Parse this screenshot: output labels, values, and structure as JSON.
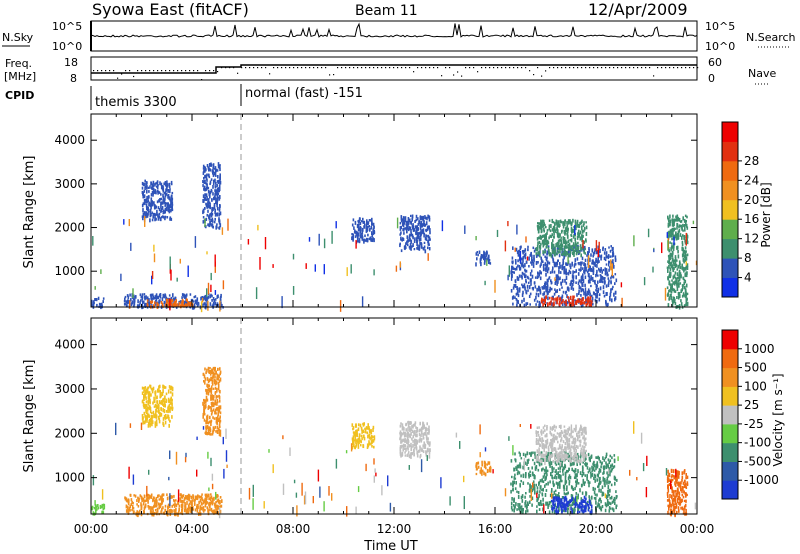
{
  "header": {
    "station": "Syowa East (fitACF)",
    "beam": "Beam 11",
    "date": "12/Apr/2009"
  },
  "noise_panel": {
    "left_label": "N.Sky",
    "left_ticks": [
      "10^5",
      "10^0"
    ],
    "right_ticks": [
      "10^5",
      "10^0"
    ],
    "right_label": "N.Search"
  },
  "freq_panel": {
    "left_label_line1": "Freq.",
    "left_label_line2": "[MHz]",
    "left_ticks": [
      "18",
      "8"
    ],
    "right_ticks": [
      "60",
      "0"
    ],
    "right_label": "Nave"
  },
  "cpid": {
    "label": "CPID",
    "segments": [
      {
        "name": "themis 3300",
        "start_hour": 0,
        "end_hour": 6
      },
      {
        "name": "normal (fast) -151",
        "start_hour": 6,
        "end_hour": 24
      }
    ]
  },
  "chart_data": [
    {
      "type": "heatmap",
      "parameter": "Power",
      "ylabel": "Slant Range [km]",
      "yticks": [
        1000,
        2000,
        3000,
        4000
      ],
      "ylim": [
        180,
        4600
      ],
      "xlim_hours": [
        0,
        24
      ],
      "colorbar": {
        "label": "Power [dB]",
        "tick_labels": [
          "4",
          "8",
          "12",
          "16",
          "20",
          "24",
          "28"
        ],
        "colors": [
          "#1030e6",
          "#2e53b8",
          "#3d8f6e",
          "#5fae4c",
          "#f0c020",
          "#f09020",
          "#ef6a10",
          "#e23010",
          "#ee0000"
        ]
      },
      "echo_regions": [
        {
          "t0": 0.0,
          "t1": 0.5,
          "r0": 200,
          "r1": 420,
          "color": "#2e53b8"
        },
        {
          "t0": 1.3,
          "t1": 5.2,
          "r0": 200,
          "r1": 500,
          "color": "#2e53b8"
        },
        {
          "t0": 2.2,
          "t1": 4.0,
          "r0": 220,
          "r1": 380,
          "color": "#ef6a10"
        },
        {
          "t0": 2.0,
          "t1": 3.2,
          "r0": 2200,
          "r1": 3100,
          "color": "#2e53b8"
        },
        {
          "t0": 4.4,
          "t1": 5.1,
          "r0": 2000,
          "r1": 3500,
          "color": "#2e53b8"
        },
        {
          "t0": 10.3,
          "t1": 11.2,
          "r0": 1700,
          "r1": 2250,
          "color": "#2e53b8"
        },
        {
          "t0": 12.2,
          "t1": 13.4,
          "r0": 1500,
          "r1": 2300,
          "color": "#2e53b8"
        },
        {
          "t0": 15.2,
          "t1": 15.8,
          "r0": 1200,
          "r1": 1500,
          "color": "#2e53b8"
        },
        {
          "t0": 16.6,
          "t1": 20.8,
          "r0": 250,
          "r1": 1600,
          "color": "#2e53b8"
        },
        {
          "t0": 17.6,
          "t1": 19.6,
          "r0": 1400,
          "r1": 2200,
          "color": "#3d8f6e"
        },
        {
          "t0": 17.8,
          "t1": 19.8,
          "r0": 250,
          "r1": 450,
          "color": "#e23010"
        },
        {
          "t0": 22.8,
          "t1": 23.6,
          "r0": 200,
          "r1": 2300,
          "color": "#3d8f6e"
        }
      ]
    },
    {
      "type": "heatmap",
      "parameter": "Velocity",
      "ylabel": "Slant Range [km]",
      "yticks": [
        1000,
        2000,
        3000,
        4000
      ],
      "ylim": [
        180,
        4600
      ],
      "xlim_hours": [
        0,
        24
      ],
      "xticks": [
        "00:00",
        "04:00",
        "08:00",
        "12:00",
        "16:00",
        "20:00",
        "00:00"
      ],
      "xlabel": "Time UT",
      "colorbar": {
        "label": "Velocity  [m s⁻¹]",
        "tick_labels": [
          "1000",
          "500",
          "100",
          "25",
          "-25",
          "-100",
          "-500",
          "-1000"
        ],
        "colors": [
          "#1e3cd2",
          "#2e5aa8",
          "#3d8f6e",
          "#66cc44",
          "#c0c0c0",
          "#f0c020",
          "#f09020",
          "#ef6a10",
          "#ee0000"
        ]
      },
      "echo_regions": [
        {
          "t0": 0.0,
          "t1": 0.5,
          "r0": 200,
          "r1": 420,
          "color": "#66cc44"
        },
        {
          "t0": 1.3,
          "t1": 5.2,
          "r0": 200,
          "r1": 650,
          "color": "#f09020"
        },
        {
          "t0": 2.0,
          "t1": 3.2,
          "r0": 2200,
          "r1": 3100,
          "color": "#f0c020"
        },
        {
          "t0": 4.4,
          "t1": 5.1,
          "r0": 2000,
          "r1": 3500,
          "color": "#f09020"
        },
        {
          "t0": 10.3,
          "t1": 11.2,
          "r0": 1700,
          "r1": 2250,
          "color": "#f0c020"
        },
        {
          "t0": 12.2,
          "t1": 13.4,
          "r0": 1500,
          "r1": 2300,
          "color": "#c0c0c0"
        },
        {
          "t0": 15.2,
          "t1": 15.8,
          "r0": 1100,
          "r1": 1400,
          "color": "#f09020"
        },
        {
          "t0": 16.6,
          "t1": 20.8,
          "r0": 250,
          "r1": 1600,
          "color": "#3d8f6e"
        },
        {
          "t0": 17.6,
          "t1": 19.6,
          "r0": 1400,
          "r1": 2200,
          "color": "#c0c0c0"
        },
        {
          "t0": 18.2,
          "t1": 19.8,
          "r0": 250,
          "r1": 600,
          "color": "#1e3cd2"
        },
        {
          "t0": 22.8,
          "t1": 23.6,
          "r0": 200,
          "r1": 1200,
          "color": "#ef6a10"
        }
      ]
    }
  ]
}
